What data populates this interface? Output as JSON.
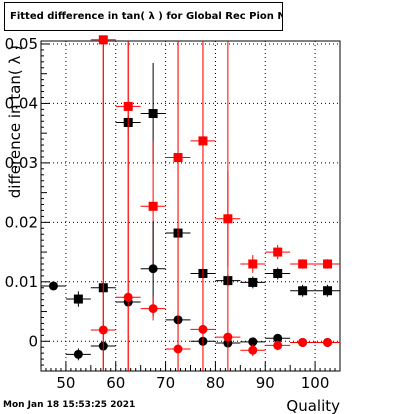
{
  "window": {
    "timestamp": "Mon Jan 18 15:53:25 2021"
  },
  "chart_data": {
    "type": "scatter",
    "title": "Fitted difference in tan( λ ) for Global Rec Pion NoHits",
    "xlabel": "Quality",
    "ylabel": "difference in tan( λ )",
    "xlim": [
      45,
      105
    ],
    "ylim": [
      -0.005,
      0.0505
    ],
    "x_ticks": [
      {
        "value": 50,
        "label": "50"
      },
      {
        "value": 60,
        "label": "60"
      },
      {
        "value": 70,
        "label": "70"
      },
      {
        "value": 80,
        "label": "80"
      },
      {
        "value": 90,
        "label": "90"
      },
      {
        "value": 100,
        "label": "100"
      }
    ],
    "y_ticks": [
      {
        "value": 0,
        "label": "0"
      },
      {
        "value": 0.01,
        "label": "0.01"
      },
      {
        "value": 0.02,
        "label": "0.02"
      },
      {
        "value": 0.03,
        "label": "0.03"
      },
      {
        "value": 0.04,
        "label": "0.04"
      },
      {
        "value": 0.05,
        "label": "0.05"
      }
    ],
    "grid": true,
    "x_bin_halfwidth": 2.5,
    "series": [
      {
        "marker": "square",
        "color": "#000000",
        "points": [
          {
            "x": 52.5,
            "y": 0.0071,
            "yerr": 0.0013
          },
          {
            "x": 57.5,
            "y": 0.009,
            "yerr": 0.001
          },
          {
            "x": 62.5,
            "y": 0.0368,
            "yerr": 0.001
          },
          {
            "x": 67.5,
            "y": 0.0383,
            "yerr": 0.0085
          },
          {
            "x": 72.5,
            "y": 0.0182,
            "yerr": 0.001
          },
          {
            "x": 77.5,
            "y": 0.0114,
            "yerr": 0.001
          },
          {
            "x": 82.5,
            "y": 0.0102,
            "yerr": 0.001
          },
          {
            "x": 87.5,
            "y": 0.0099,
            "yerr": 0.001
          },
          {
            "x": 92.5,
            "y": 0.0114,
            "yerr": 0.001
          },
          {
            "x": 97.5,
            "y": 0.0085,
            "yerr": 0.001
          },
          {
            "x": 102.5,
            "y": 0.0085,
            "yerr": 0.001
          }
        ]
      },
      {
        "marker": "square",
        "color": "#ff0000",
        "points": [
          {
            "x": 57.5,
            "y": 0.0507,
            "yerr": 0.06
          },
          {
            "x": 62.5,
            "y": 0.0395,
            "yerr": 0.06
          },
          {
            "x": 67.5,
            "y": 0.0227,
            "yerr": 0.011
          },
          {
            "x": 72.5,
            "y": 0.0309,
            "yerr": 0.06
          },
          {
            "x": 77.5,
            "y": 0.0337,
            "yerr": 0.06
          },
          {
            "x": 82.5,
            "y": 0.0206,
            "yerr": 0.008
          },
          {
            "x": 87.5,
            "y": 0.013,
            "yerr": 0.0015
          },
          {
            "x": 92.5,
            "y": 0.015,
            "yerr": 0.0012
          },
          {
            "x": 97.5,
            "y": 0.013,
            "yerr": 0.0008
          },
          {
            "x": 102.5,
            "y": 0.013,
            "yerr": 0.0008
          }
        ]
      },
      {
        "marker": "circle",
        "color": "#000000",
        "points": [
          {
            "x": 47.5,
            "y": 0.0093,
            "yerr": 0.0005
          },
          {
            "x": 52.5,
            "y": -0.0022,
            "yerr": 0.001
          },
          {
            "x": 57.5,
            "y": -0.0008,
            "yerr": 0.0005
          },
          {
            "x": 62.5,
            "y": 0.0066,
            "yerr": 0.0005
          },
          {
            "x": 67.5,
            "y": 0.0122,
            "yerr": 0.008
          },
          {
            "x": 72.5,
            "y": 0.0036,
            "yerr": 0.0005
          },
          {
            "x": 77.5,
            "y": 0.0,
            "yerr": 0.0005
          },
          {
            "x": 82.5,
            "y": -0.0003,
            "yerr": 0.0005
          },
          {
            "x": 87.5,
            "y": -0.0001,
            "yerr": 0.0005
          },
          {
            "x": 92.5,
            "y": 0.0005,
            "yerr": 0.0005
          },
          {
            "x": 97.5,
            "y": -0.0002,
            "yerr": 0.0005
          },
          {
            "x": 102.5,
            "y": -0.0002,
            "yerr": 0.0005
          }
        ]
      },
      {
        "marker": "circle",
        "color": "#ff0000",
        "points": [
          {
            "x": 57.5,
            "y": 0.0019,
            "yerr": 0.06
          },
          {
            "x": 62.5,
            "y": 0.0074,
            "yerr": 0.06
          },
          {
            "x": 67.5,
            "y": 0.0055,
            "yerr": 0.002
          },
          {
            "x": 72.5,
            "y": -0.0013,
            "yerr": 0.06
          },
          {
            "x": 77.5,
            "y": 0.002,
            "yerr": 0.06
          },
          {
            "x": 82.5,
            "y": 0.0007,
            "yerr": 0.06
          },
          {
            "x": 87.5,
            "y": -0.0015,
            "yerr": 0.001
          },
          {
            "x": 92.5,
            "y": -0.0007,
            "yerr": 0.0008
          },
          {
            "x": 97.5,
            "y": -0.0002,
            "yerr": 0.0005
          },
          {
            "x": 102.5,
            "y": -0.0002,
            "yerr": 0.0005
          }
        ]
      }
    ]
  }
}
